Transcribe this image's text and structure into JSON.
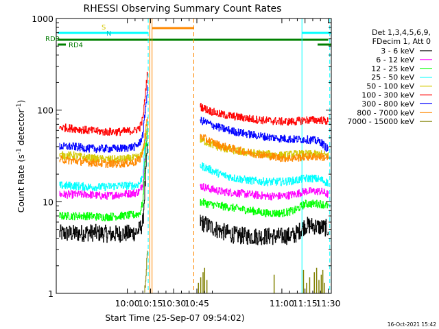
{
  "chart_data": {
    "type": "line",
    "title": "RHESSI Observing Summary Count Rates",
    "xlabel": "Start Time (25-Sep-07 09:54:02)",
    "ylabel_main": "Count Rate (s",
    "ylabel_sup1": "-1",
    "ylabel_mid": " detector",
    "ylabel_sup2": "-1",
    "ylabel_end": ")",
    "yscale": "log",
    "xlim": [
      954,
      1132
    ],
    "ylim": [
      1,
      1000
    ],
    "x_tick_labels": [
      "10:00",
      "10:15",
      "10:30",
      "10:45",
      "11:00",
      "11:15",
      "11:30"
    ],
    "x_tick_values": [
      1000,
      1015,
      1030,
      1045,
      1100,
      1115,
      1130
    ],
    "y_tick_labels": [
      "1",
      "10",
      "100",
      "1000"
    ],
    "y_tick_values": [
      1,
      10,
      100,
      1000
    ],
    "legend": {
      "header_1": "Det 1,3,4,5,6,9,",
      "header_2": "FDecim 1, Att 0",
      "entries": [
        {
          "label": "3 - 6 keV",
          "color": "#000000"
        },
        {
          "label": "6 - 12 keV",
          "color": "#ff00ff"
        },
        {
          "label": "12 - 25 keV",
          "color": "#00ff00"
        },
        {
          "label": "25 - 50 keV",
          "color": "#00ffff"
        },
        {
          "label": "50 - 100 keV",
          "color": "#d4c800"
        },
        {
          "label": "100 - 300 keV",
          "color": "#ff0000"
        },
        {
          "label": "300 - 800 keV",
          "color": "#0000ff"
        },
        {
          "label": "800 - 7000 keV",
          "color": "#ff8800"
        },
        {
          "label": "7000 - 15000 keV",
          "color": "#808000"
        }
      ]
    },
    "annotations": {
      "rd0": "RD0",
      "rd4": "RD4",
      "s": "S",
      "n": "N",
      "timestamp": "16-Oct-2021 15:42"
    },
    "series": [
      {
        "name": "3 - 6 keV",
        "color": "#000000",
        "segments": [
          {
            "x": [
              956,
              965,
              975,
              985,
              990,
              995,
              1000,
              1005,
              1008,
              1010,
              1011,
              1012,
              1013
            ],
            "y": [
              4.5,
              4.5,
              4.6,
              4.5,
              4.4,
              4.5,
              4.5,
              4.6,
              5,
              6,
              12,
              22,
              40
            ]
          },
          {
            "x": [
              1047,
              1052,
              1060,
              1070,
              1080,
              1090,
              1100,
              1108,
              1115,
              1120,
              1124,
              1128,
              1130
            ],
            "y": [
              6,
              5.5,
              4.8,
              4.3,
              4.2,
              4.2,
              4.2,
              4.3,
              5.5,
              5.5,
              5.3,
              5.2,
              5.0
            ]
          }
        ]
      },
      {
        "name": "6 - 12 keV",
        "color": "#ff00ff",
        "segments": [
          {
            "x": [
              956,
              965,
              975,
              985,
              995,
              1005,
              1008,
              1010,
              1011,
              1012,
              1013
            ],
            "y": [
              12,
              12,
              12,
              11.5,
              12,
              12.5,
              13,
              16,
              28,
              45,
              60
            ]
          },
          {
            "x": [
              1047,
              1052,
              1060,
              1070,
              1080,
              1090,
              1100,
              1108,
              1115,
              1120,
              1125,
              1130
            ],
            "y": [
              15,
              14,
              13,
              12.5,
              12,
              11.5,
              11.5,
              12,
              13,
              13,
              13,
              12
            ]
          }
        ]
      },
      {
        "name": "12 - 25 keV",
        "color": "#00ff00",
        "segments": [
          {
            "x": [
              956,
              965,
              975,
              985,
              995,
              1005,
              1008,
              1010,
              1011,
              1012,
              1013
            ],
            "y": [
              7,
              7,
              7,
              6.8,
              7,
              7.2,
              7.5,
              10,
              22,
              40,
              55
            ]
          },
          {
            "x": [
              1047,
              1052,
              1060,
              1070,
              1080,
              1090,
              1100,
              1108,
              1115,
              1120,
              1125,
              1130
            ],
            "y": [
              10,
              9.5,
              9,
              8.5,
              8,
              7.5,
              7.5,
              8,
              9.5,
              9.5,
              9.5,
              9
            ]
          }
        ]
      },
      {
        "name": "25 - 50 keV",
        "color": "#00ffff",
        "segments": [
          {
            "x": [
              956,
              965,
              975,
              985,
              995,
              1005,
              1008,
              1010,
              1011,
              1012,
              1013
            ],
            "y": [
              15,
              15,
              14.5,
              14.5,
              15,
              15,
              16,
              20,
              35,
              55,
              70
            ]
          },
          {
            "x": [
              1047,
              1052,
              1060,
              1070,
              1080,
              1090,
              1100,
              1108,
              1115,
              1120,
              1125,
              1130
            ],
            "y": [
              25,
              23,
              20,
              18,
              17,
              16.5,
              16.5,
              17,
              18,
              18,
              17.5,
              16
            ]
          }
        ]
      },
      {
        "name": "50 - 100 keV",
        "color": "#d4c800",
        "segments": [
          {
            "x": [
              956,
              965,
              975,
              985,
              995,
              1005,
              1008,
              1010,
              1011,
              1012,
              1013
            ],
            "y": [
              32,
              32,
              30,
              29,
              29,
              30,
              31,
              35,
              45,
              55,
              65
            ]
          },
          {
            "x": [
              1047,
              1052,
              1060,
              1070,
              1080,
              1090,
              1100,
              1108,
              1115,
              1120,
              1125,
              1130
            ],
            "y": [
              48,
              44,
              39,
              36,
              34,
              33,
              32,
              33,
              33,
              33,
              33,
              32
            ]
          }
        ]
      },
      {
        "name": "100 - 300 keV",
        "color": "#ff0000",
        "segments": [
          {
            "x": [
              956,
              965,
              975,
              985,
              995,
              1005,
              1008,
              1010,
              1011,
              1012,
              1013
            ],
            "y": [
              65,
              63,
              60,
              58,
              58,
              60,
              65,
              80,
              120,
              180,
              260
            ]
          },
          {
            "x": [
              1047,
              1052,
              1060,
              1070,
              1080,
              1090,
              1100,
              1108,
              1115,
              1120,
              1125,
              1130
            ],
            "y": [
              110,
              100,
              90,
              85,
              80,
              77,
              75,
              75,
              78,
              78,
              78,
              75
            ]
          }
        ]
      },
      {
        "name": "300 - 800 keV",
        "color": "#0000ff",
        "segments": [
          {
            "x": [
              956,
              965,
              975,
              985,
              995,
              1005,
              1008,
              1010,
              1011,
              1012,
              1013
            ],
            "y": [
              40,
              40,
              38,
              38,
              38,
              40,
              44,
              55,
              80,
              120,
              170
            ]
          },
          {
            "x": [
              1047,
              1052,
              1060,
              1070,
              1080,
              1090,
              1100,
              1108,
              1115,
              1120,
              1125,
              1130
            ],
            "y": [
              78,
              72,
              64,
              58,
              54,
              51,
              49,
              48,
              48,
              47,
              45,
              37
            ]
          }
        ]
      },
      {
        "name": "800 - 7000 keV",
        "color": "#ff8800",
        "segments": [
          {
            "x": [
              956,
              965,
              975,
              985,
              995,
              1005,
              1008,
              1010,
              1011,
              1012,
              1013
            ],
            "y": [
              29,
              28,
              27,
              26,
              26,
              27,
              29,
              35,
              50,
              65,
              80
            ]
          },
          {
            "x": [
              1047,
              1052,
              1060,
              1070,
              1080,
              1090,
              1100,
              1108,
              1115,
              1120,
              1125,
              1130
            ],
            "y": [
              52,
              47,
              41,
              37,
              34,
              32,
              30,
              30,
              31,
              31,
              31,
              30
            ]
          }
        ]
      },
      {
        "name": "7000 - 15000 keV",
        "color": "#808000",
        "segments": [
          {
            "x": [
              1011,
              1012,
              1012.5,
              1013
            ],
            "y": [
              1,
              1.5,
              2.2,
              3.2
            ]
          }
        ]
      }
    ],
    "flags": {
      "saa_intervals": [
        [
          955,
          1013.5
        ],
        [
          1113,
          1132
        ]
      ],
      "night_intervals": [
        [
          1016,
          1043
        ]
      ],
      "rd0_level_range": [
        955,
        1130
      ],
      "rd4_level_range": [
        955,
        1132
      ]
    },
    "vertical_markers": [
      {
        "x": 1013.5,
        "color": "#00ffff",
        "style": "dashed"
      },
      {
        "x": 1014.5,
        "color": "#ff8800",
        "style": "solid"
      },
      {
        "x": 1016,
        "color": "#ff8800",
        "style": "solid"
      },
      {
        "x": 1043,
        "color": "#ff8800",
        "style": "dashed"
      },
      {
        "x": 1113,
        "color": "#00ffff",
        "style": "solid"
      },
      {
        "x": 1131,
        "color": "#00ffff",
        "style": "dashed"
      }
    ]
  }
}
